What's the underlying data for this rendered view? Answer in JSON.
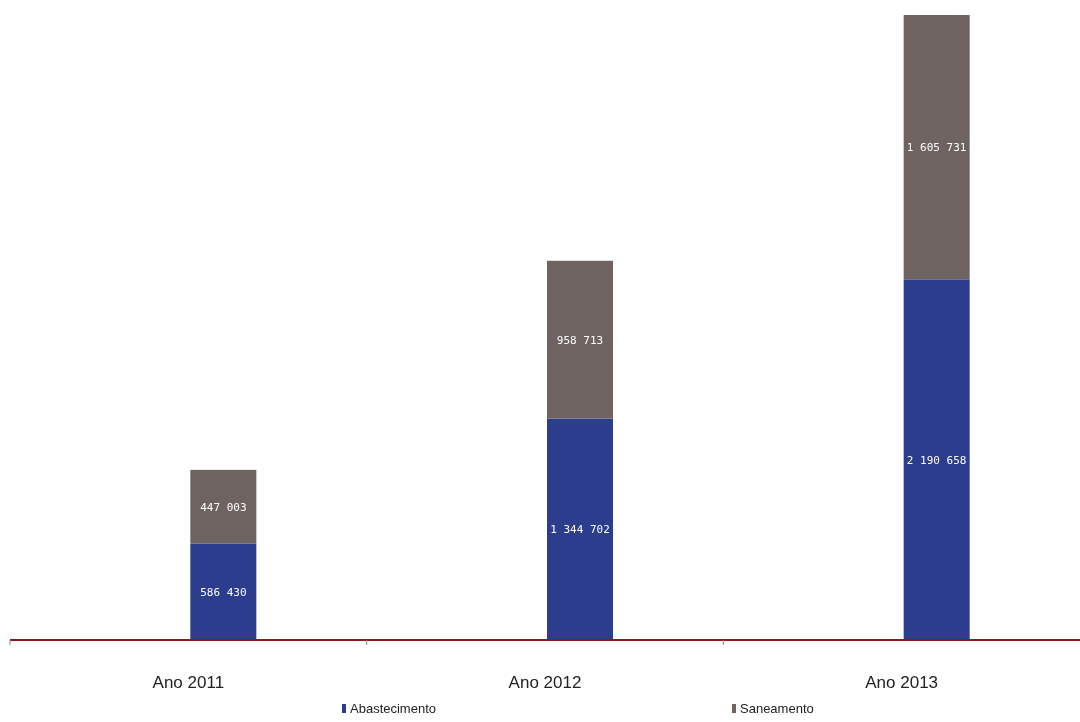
{
  "chart_data": {
    "type": "bar",
    "stacked": true,
    "categories": [
      "Ano 2011",
      "Ano 2012",
      "Ano 2013"
    ],
    "series": [
      {
        "name": "Abastecimento",
        "color": "#2b3d8c",
        "values": [
          586430,
          1344702,
          2190658
        ],
        "value_labels": [
          "586 430",
          "1 344 702",
          "2 190 658"
        ]
      },
      {
        "name": "Saneamento",
        "color": "#6e6360",
        "values": [
          447003,
          958713,
          1605731
        ],
        "value_labels": [
          "447 003",
          "958 713",
          "1 605 731"
        ]
      }
    ],
    "legend": "bottom"
  }
}
